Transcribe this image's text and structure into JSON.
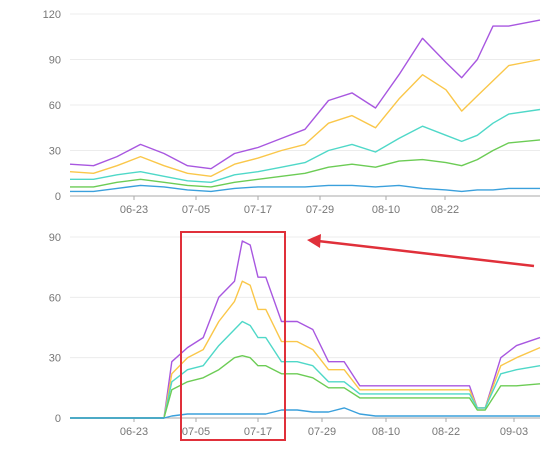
{
  "chart_data": [
    {
      "type": "line",
      "title": "",
      "xlabel": "",
      "ylabel": "",
      "ylim": [
        0,
        120
      ],
      "yticks": [
        "0",
        "30",
        "60",
        "90",
        "120"
      ],
      "xticks": [
        "06-23",
        "07-05",
        "07-17",
        "07-29",
        "08-10",
        "08-22"
      ],
      "grid": true,
      "series": [
        {
          "color": "#a857e0",
          "x": [
            0,
            6,
            12,
            18,
            24,
            30,
            36,
            42,
            48,
            54,
            60,
            66,
            72,
            78,
            84,
            90,
            96,
            100,
            104,
            108,
            112,
            120
          ],
          "y": [
            21,
            20,
            26,
            34,
            28,
            20,
            18,
            28,
            32,
            38,
            44,
            63,
            68,
            58,
            80,
            104,
            88,
            78,
            90,
            112,
            112,
            116
          ]
        },
        {
          "color": "#fac74a",
          "x": [
            0,
            6,
            12,
            18,
            24,
            30,
            36,
            42,
            48,
            54,
            60,
            66,
            72,
            78,
            84,
            90,
            96,
            100,
            104,
            108,
            112,
            120
          ],
          "y": [
            16,
            15,
            20,
            26,
            20,
            15,
            13,
            21,
            25,
            30,
            34,
            48,
            53,
            45,
            64,
            80,
            70,
            56,
            66,
            76,
            86,
            90
          ]
        },
        {
          "color": "#4fd8c8",
          "x": [
            0,
            6,
            12,
            18,
            24,
            30,
            36,
            42,
            48,
            54,
            60,
            66,
            72,
            78,
            84,
            90,
            96,
            100,
            104,
            108,
            112,
            120
          ],
          "y": [
            11,
            11,
            14,
            16,
            13,
            10,
            9,
            14,
            16,
            19,
            22,
            30,
            34,
            29,
            38,
            46,
            40,
            36,
            40,
            48,
            54,
            57
          ]
        },
        {
          "color": "#6ccc55",
          "x": [
            0,
            6,
            12,
            18,
            24,
            30,
            36,
            42,
            48,
            54,
            60,
            66,
            72,
            78,
            84,
            90,
            96,
            100,
            104,
            108,
            112,
            120
          ],
          "y": [
            6,
            6,
            9,
            11,
            9,
            7,
            6,
            9,
            11,
            13,
            15,
            19,
            21,
            19,
            23,
            24,
            22,
            20,
            24,
            30,
            35,
            37
          ]
        },
        {
          "color": "#3aa0dc",
          "x": [
            0,
            6,
            12,
            18,
            24,
            30,
            36,
            42,
            48,
            54,
            60,
            66,
            72,
            78,
            84,
            90,
            96,
            100,
            104,
            108,
            112,
            120
          ],
          "y": [
            3,
            3,
            5,
            7,
            6,
            4,
            3,
            5,
            6,
            6,
            6,
            7,
            7,
            6,
            7,
            5,
            4,
            3,
            4,
            4,
            5,
            5
          ]
        }
      ]
    },
    {
      "type": "line",
      "title": "",
      "xlabel": "",
      "ylabel": "",
      "ylim": [
        0,
        90
      ],
      "yticks": [
        "0",
        "30",
        "60",
        "90"
      ],
      "xticks": [
        "06-23",
        "07-05",
        "07-17",
        "07-29",
        "08-10",
        "08-22",
        "09-03"
      ],
      "grid": true,
      "series": [
        {
          "color": "#a857e0",
          "x": [
            0,
            20,
            24,
            26,
            30,
            34,
            38,
            42,
            44,
            46,
            48,
            50,
            54,
            58,
            62,
            66,
            70,
            74,
            78,
            82,
            86,
            90,
            94,
            98,
            102,
            104,
            106,
            110,
            114,
            120
          ],
          "y": [
            0,
            0,
            0,
            28,
            35,
            40,
            60,
            68,
            88,
            86,
            70,
            70,
            48,
            48,
            44,
            28,
            28,
            16,
            16,
            16,
            16,
            16,
            16,
            16,
            16,
            5,
            5,
            30,
            36,
            40
          ]
        },
        {
          "color": "#fac74a",
          "x": [
            0,
            20,
            24,
            26,
            30,
            34,
            38,
            42,
            44,
            46,
            48,
            50,
            54,
            58,
            62,
            66,
            70,
            74,
            78,
            82,
            86,
            90,
            94,
            98,
            102,
            104,
            106,
            110,
            114,
            120
          ],
          "y": [
            0,
            0,
            0,
            22,
            30,
            34,
            48,
            58,
            68,
            66,
            54,
            54,
            38,
            38,
            34,
            24,
            24,
            14,
            14,
            14,
            14,
            14,
            14,
            14,
            14,
            5,
            5,
            26,
            30,
            35
          ]
        },
        {
          "color": "#4fd8c8",
          "x": [
            0,
            20,
            24,
            26,
            30,
            34,
            38,
            42,
            44,
            46,
            48,
            50,
            54,
            58,
            62,
            66,
            70,
            74,
            78,
            82,
            86,
            90,
            94,
            98,
            102,
            104,
            106,
            110,
            114,
            120
          ],
          "y": [
            0,
            0,
            0,
            18,
            24,
            26,
            36,
            44,
            48,
            46,
            40,
            40,
            28,
            28,
            26,
            18,
            18,
            12,
            12,
            12,
            12,
            12,
            12,
            12,
            12,
            5,
            5,
            22,
            24,
            26
          ]
        },
        {
          "color": "#6ccc55",
          "x": [
            0,
            20,
            24,
            26,
            30,
            34,
            38,
            42,
            44,
            46,
            48,
            50,
            54,
            58,
            62,
            66,
            70,
            74,
            78,
            82,
            86,
            90,
            94,
            98,
            102,
            104,
            106,
            110,
            114,
            120
          ],
          "y": [
            0,
            0,
            0,
            14,
            18,
            20,
            24,
            30,
            31,
            30,
            26,
            26,
            22,
            22,
            20,
            15,
            15,
            10,
            10,
            10,
            10,
            10,
            10,
            10,
            10,
            4,
            4,
            16,
            16,
            17
          ]
        },
        {
          "color": "#3aa0dc",
          "x": [
            0,
            20,
            24,
            26,
            30,
            34,
            38,
            42,
            44,
            46,
            48,
            50,
            54,
            58,
            62,
            66,
            70,
            74,
            78,
            82,
            86,
            90,
            94,
            98,
            102,
            104,
            106,
            110,
            114,
            120
          ],
          "y": [
            0,
            0,
            0,
            1,
            2,
            2,
            2,
            2,
            2,
            2,
            2,
            2,
            4,
            4,
            3,
            3,
            5,
            2,
            1,
            1,
            1,
            1,
            1,
            1,
            1,
            1,
            1,
            1,
            1,
            1
          ]
        }
      ],
      "annotation": {
        "type": "highlight-box-and-arrow",
        "color": "#e0303a"
      }
    }
  ]
}
